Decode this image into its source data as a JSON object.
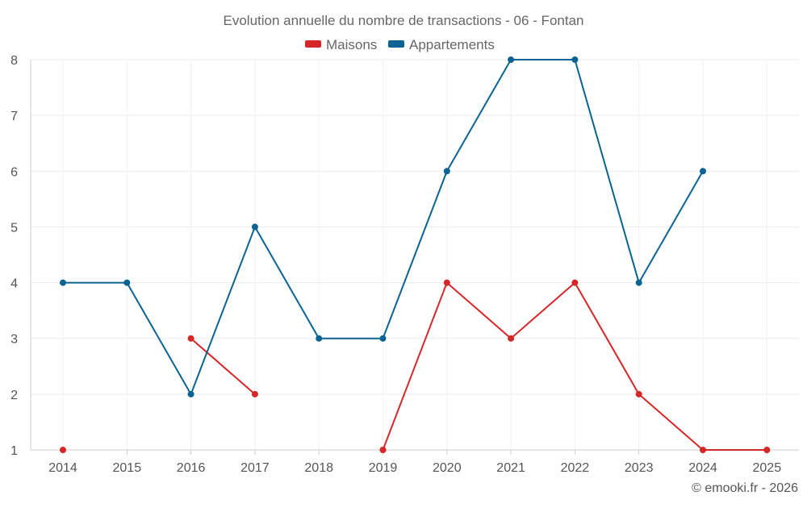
{
  "chart_data": {
    "type": "line",
    "title": "Evolution annuelle du nombre de transactions - 06 - Fontan",
    "subtitle": "",
    "xlabel": "",
    "ylabel": "",
    "legend_position": "top-center",
    "grid": true,
    "ylim": [
      1,
      8
    ],
    "y_ticks": [
      "1",
      "2",
      "3",
      "4",
      "5",
      "6",
      "7",
      "8"
    ],
    "categories": [
      "2014",
      "2015",
      "2016",
      "2017",
      "2018",
      "2019",
      "2020",
      "2021",
      "2022",
      "2023",
      "2024",
      "2025"
    ],
    "series": [
      {
        "name": "Maisons",
        "color": "#d62728",
        "values": [
          1,
          null,
          3,
          2,
          null,
          1,
          4,
          3,
          4,
          2,
          1,
          1
        ]
      },
      {
        "name": "Appartements",
        "color": "#0b6394",
        "values": [
          4,
          4,
          2,
          5,
          3,
          3,
          6,
          8,
          8,
          4,
          6,
          null
        ]
      }
    ],
    "credit": "© emooki.fr - 2026"
  }
}
